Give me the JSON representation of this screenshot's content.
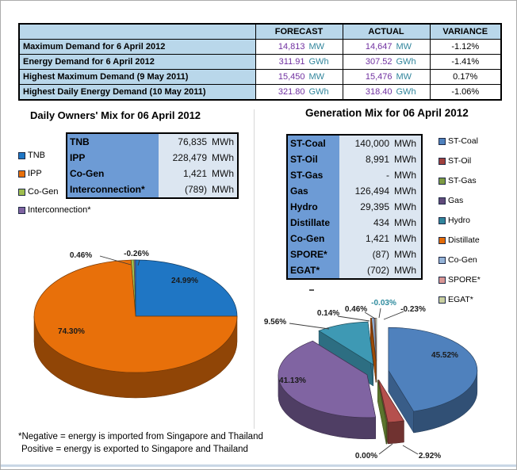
{
  "summary_table": {
    "col_headers": [
      "FORECAST",
      "ACTUAL",
      "VARIANCE"
    ],
    "rows": [
      {
        "label": "Maximum Demand for 6 April 2012",
        "forecast": "14,813",
        "forecast_unit": "MW",
        "actual": "14,647",
        "actual_unit": "MW",
        "variance": "-1.12%"
      },
      {
        "label": "Energy Demand for 6 April 2012",
        "forecast": "311.91",
        "forecast_unit": "GWh",
        "actual": "307.52",
        "actual_unit": "GWh",
        "variance": "-1.41%"
      },
      {
        "label": "Highest Maximum Demand (9 May 2011)",
        "forecast": "15,450",
        "forecast_unit": "MW",
        "actual": "15,476",
        "actual_unit": "MW",
        "variance": "0.17%"
      },
      {
        "label": "Highest Daily Energy Demand (10 May 2011)",
        "forecast": "321.80",
        "forecast_unit": "GWh",
        "actual": "318.40",
        "actual_unit": "GWh",
        "variance": "-1.06%"
      }
    ]
  },
  "owners_mix": {
    "title": "Daily Owners' Mix for 06 April 2012",
    "legend": [
      {
        "label": "TNB",
        "color": "#1F76C4"
      },
      {
        "label": "IPP",
        "color": "#E8700A"
      },
      {
        "label": "Co-Gen",
        "color": "#9FBE4E"
      },
      {
        "label": "Interconnection*",
        "color": "#8064A2"
      }
    ],
    "table": [
      {
        "label": "TNB",
        "value": "76,835",
        "unit": "MWh"
      },
      {
        "label": "IPP",
        "value": "228,479",
        "unit": "MWh"
      },
      {
        "label": "Co-Gen",
        "value": "1,421",
        "unit": "MWh"
      },
      {
        "label": "Interconnection*",
        "value": "(789)",
        "unit": "MWh"
      }
    ]
  },
  "generation_mix": {
    "title": "Generation Mix for 06 April 2012",
    "legend": [
      {
        "label": "ST-Coal",
        "color": "#4F81BD"
      },
      {
        "label": "ST-Oil",
        "color": "#A0413E"
      },
      {
        "label": "ST-Gas",
        "color": "#7D9B44"
      },
      {
        "label": "Gas",
        "color": "#604A7B"
      },
      {
        "label": "Hydro",
        "color": "#31859C"
      },
      {
        "label": "Distillate",
        "color": "#E36C09"
      },
      {
        "label": "Co-Gen",
        "color": "#95B3D7"
      },
      {
        "label": "SPORE*",
        "color": "#D99694"
      },
      {
        "label": "EGAT*",
        "color": "#C9CFA0"
      }
    ],
    "table": [
      {
        "label": "ST-Coal",
        "value": "140,000",
        "unit": "MWh"
      },
      {
        "label": "ST-Oil",
        "value": "8,991",
        "unit": "MWh"
      },
      {
        "label": "ST-Gas",
        "value": "-",
        "unit": "MWh"
      },
      {
        "label": "Gas",
        "value": "126,494",
        "unit": "MWh"
      },
      {
        "label": "Hydro",
        "value": "29,395",
        "unit": "MWh"
      },
      {
        "label": "Distillate",
        "value": "434",
        "unit": "MWh"
      },
      {
        "label": "Co-Gen",
        "value": "1,421",
        "unit": "MWh"
      },
      {
        "label": "SPORE*",
        "value": "(87)",
        "unit": "MWh"
      },
      {
        "label": "EGAT*",
        "value": "(702)",
        "unit": "MWh"
      }
    ]
  },
  "footnote": {
    "line1": "*Negative = energy is imported from Singapore and Thailand",
    "line2": "Positive = energy is exported to Singapore and Thailand"
  },
  "chart_data": [
    {
      "type": "pie",
      "title": "Daily Owners' Mix for 06 April 2012",
      "unit": "MWh",
      "categories": [
        "TNB",
        "IPP",
        "Co-Gen",
        "Interconnection*"
      ],
      "values": [
        76835,
        228479,
        1421,
        -789
      ],
      "pct": [
        24.99,
        74.3,
        0.46,
        -0.26
      ],
      "pct_labels": [
        "24.99%",
        "74.30%",
        "0.46%",
        "-0.26%"
      ],
      "colors": [
        "#1F76C4",
        "#E8700A",
        "#9FBE4E",
        "#8064A2"
      ],
      "style": "3d",
      "legend_position": "left"
    },
    {
      "type": "pie",
      "title": "Generation Mix for 06 April 2012",
      "unit": "MWh",
      "categories": [
        "ST-Coal",
        "ST-Oil",
        "ST-Gas",
        "Gas",
        "Hydro",
        "Distillate",
        "Co-Gen",
        "SPORE*",
        "EGAT*"
      ],
      "values": [
        140000,
        8991,
        0,
        126494,
        29395,
        434,
        1421,
        -87,
        -702
      ],
      "pct": [
        45.52,
        2.92,
        0.0,
        41.13,
        9.56,
        0.14,
        0.46,
        -0.03,
        -0.23
      ],
      "pct_labels": [
        "45.52%",
        "2.92%",
        "0.00%",
        "41.13%",
        "9.56%",
        "0.14%",
        "0.46%",
        "-0.03%",
        "-0.23%"
      ],
      "colors": [
        "#4F81BD",
        "#B5504D",
        "#7FA13F",
        "#8064A2",
        "#3E99B4",
        "#E36C09",
        "#95B3D7",
        "#D99694",
        "#D9DDC2"
      ],
      "style": "3d-exploded",
      "legend_position": "right"
    }
  ]
}
